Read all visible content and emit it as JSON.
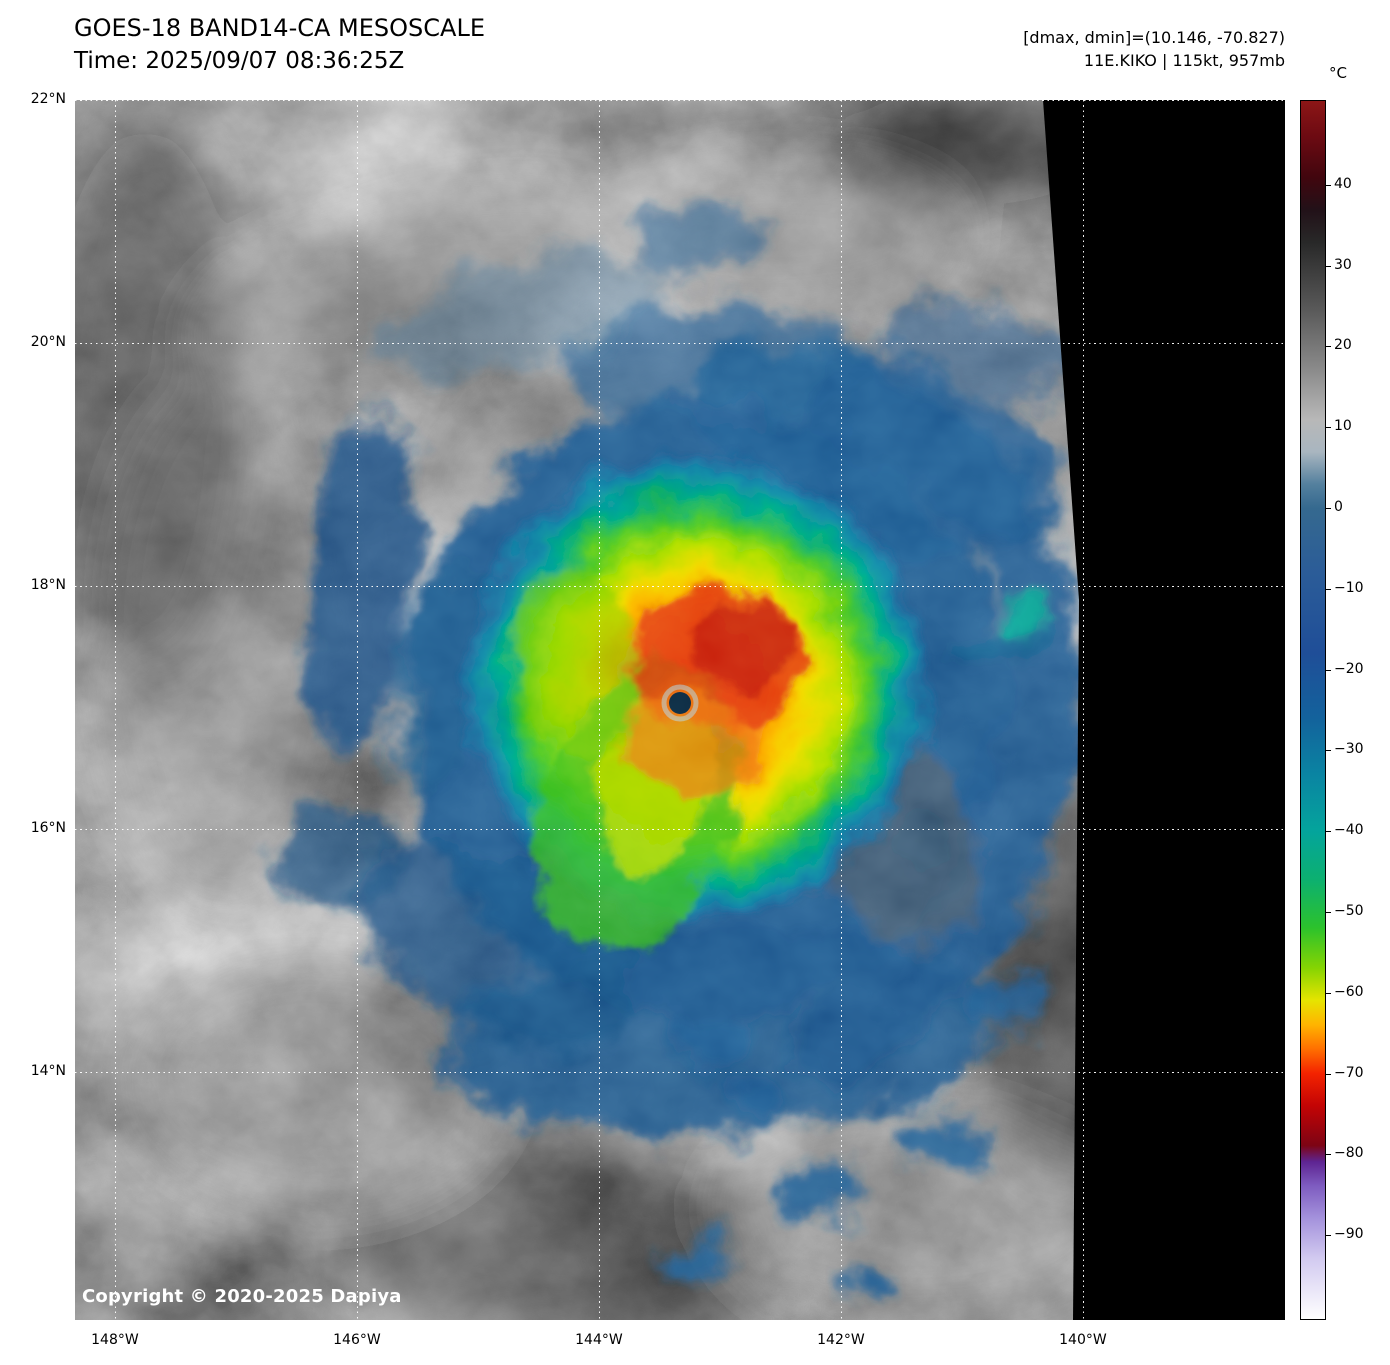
{
  "header": {
    "title": "GOES-18 BAND14-CA MESOSCALE",
    "time_line": "Time: 2025/09/07 08:36:25Z",
    "dmax_dmin_readout": "[dmax, dmin]=(10.146, -70.827)",
    "storm_readout": "11E.KIKO | 115kt, 957mb"
  },
  "axes": {
    "lat_tick_values": [
      22,
      20,
      18,
      16,
      14
    ],
    "lat_tick_labels": [
      "22°N",
      "20°N",
      "18°N",
      "16°N",
      "14°N"
    ],
    "lon_tick_values": [
      148,
      146,
      144,
      142,
      140
    ],
    "lon_tick_labels": [
      "148°W",
      "146°W",
      "144°W",
      "142°W",
      "140°W"
    ]
  },
  "colorbar": {
    "unit": "°C",
    "tick_values": [
      40,
      30,
      20,
      10,
      0,
      -10,
      -20,
      -30,
      -40,
      -50,
      -60,
      -70,
      -80,
      -90
    ],
    "colormap_stops": [
      [
        50.5,
        "#8c1616"
      ],
      [
        46,
        "#6c0a12"
      ],
      [
        41,
        "#41060e"
      ],
      [
        37,
        "#221118"
      ],
      [
        33,
        "#282828"
      ],
      [
        25,
        "#575757"
      ],
      [
        17,
        "#8c8c8c"
      ],
      [
        11,
        "#b8b8b8"
      ],
      [
        7,
        "#a9b6c0"
      ],
      [
        3,
        "#54809e"
      ],
      [
        0,
        "#35698f"
      ],
      [
        -8,
        "#2b5c98"
      ],
      [
        -18,
        "#1f4e98"
      ],
      [
        -26,
        "#13629c"
      ],
      [
        -33,
        "#0a84a2"
      ],
      [
        -40,
        "#04a49c"
      ],
      [
        -46,
        "#0cb070"
      ],
      [
        -52,
        "#2cc22c"
      ],
      [
        -57,
        "#86d402"
      ],
      [
        -61,
        "#e6e400"
      ],
      [
        -64,
        "#ffb400"
      ],
      [
        -67,
        "#ff7000"
      ],
      [
        -70,
        "#f42400"
      ],
      [
        -74,
        "#c40404"
      ],
      [
        -79,
        "#7d0414"
      ],
      [
        -81,
        "#5e2492"
      ],
      [
        -84,
        "#7e5cc0"
      ],
      [
        -88,
        "#a492dc"
      ],
      [
        -93,
        "#d2caf0"
      ],
      [
        -100.5,
        "#ffffff"
      ]
    ]
  },
  "watermark": {
    "copyright": "Copyright © 2020-2025 Dapiya"
  },
  "chart_data": {
    "type": "heatmap",
    "title": "GOES-18 BAND14-CA MESOSCALE",
    "subtitle": "Time: 2025/09/07 08:36:25Z",
    "annotations": [
      "[dmax, dmin]=(10.146, -70.827)",
      "11E.KIKO | 115kt, 957mb",
      "Copyright © 2020-2025 Dapiya"
    ],
    "x_axis": {
      "tick_labels": [
        "148°W",
        "146°W",
        "144°W",
        "142°W",
        "140°W"
      ],
      "approx_range_deg_w": [
        148.3,
        138.3
      ]
    },
    "y_axis": {
      "tick_labels": [
        "22°N",
        "20°N",
        "18°N",
        "16°N",
        "14°N"
      ],
      "approx_range_deg_n": [
        22.0,
        11.9
      ]
    },
    "colorbar": {
      "unit": "°C",
      "ticks": [
        40,
        30,
        20,
        10,
        0,
        -10,
        -20,
        -30,
        -40,
        -50,
        -60,
        -70,
        -80,
        -90
      ],
      "approx_range": [
        50,
        -100
      ]
    },
    "grid": true,
    "legend_position": "right-colorbar",
    "dmax_c": 10.146,
    "dmin_c": -70.827,
    "storm": {
      "id": "11E.KIKO",
      "intensity_kt": 115,
      "pressure_mb": 957,
      "eye_position_approx": {
        "lat_n": 17.0,
        "lon_w": 143.3
      }
    },
    "depicted": "Hurricane with clear eye; cold convective ring near -65 to -75°C (red/orange), yellow-green CDO, broad blue cirrus shield and spiral bands over gray low clouds; black no-data region along right edge"
  }
}
